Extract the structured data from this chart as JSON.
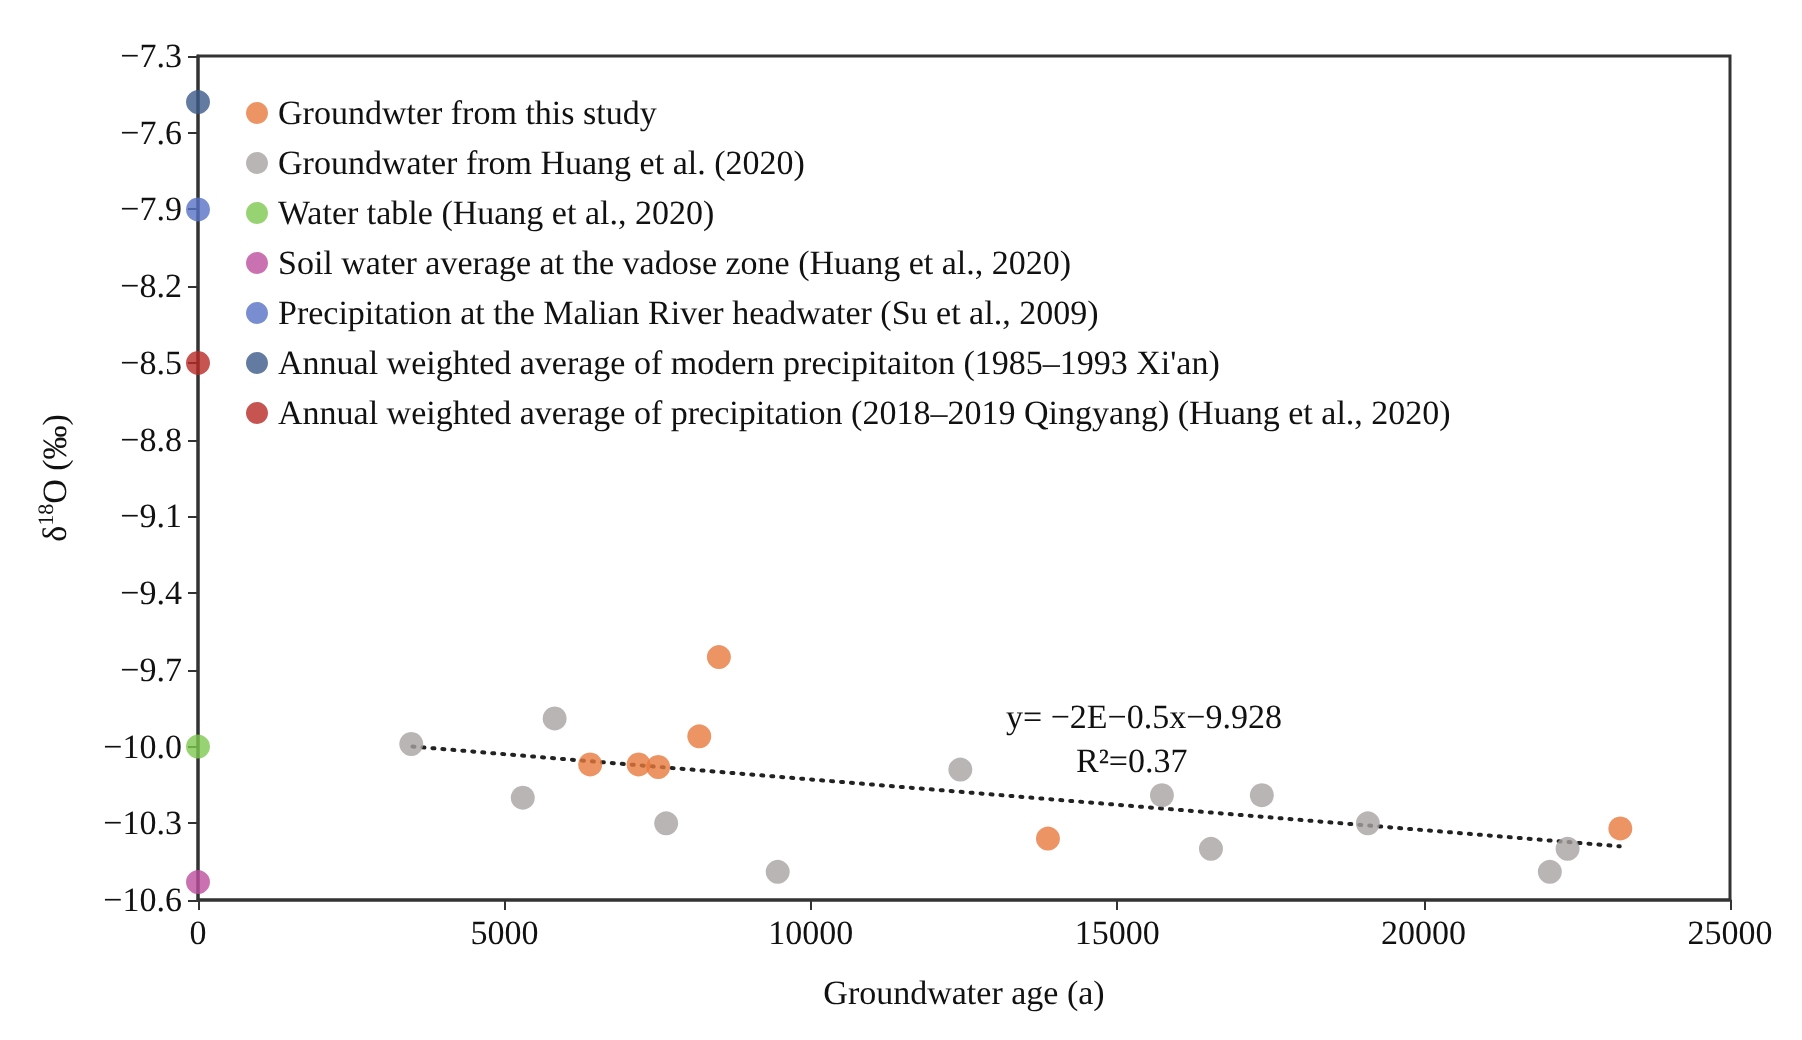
{
  "chart_data": {
    "type": "scatter",
    "xlabel": "Groundwater age (a)",
    "ylabel": "δ$^{18}$O (‰)",
    "xlim": [
      0,
      25000
    ],
    "xticks": [
      0,
      5000,
      10000,
      15000,
      20000,
      25000
    ],
    "ylim": [
      -10.6,
      -7.3
    ],
    "yticks": [
      -10.6,
      -10.3,
      {
        "value": -10.0,
        "label": "−10.0"
      },
      -9.7,
      -9.4,
      -9.1,
      -8.8,
      -8.5,
      -8.2,
      -7.9,
      -7.6,
      -7.3
    ],
    "grid": false,
    "legend": "top left",
    "marker": "circle",
    "annotations": [
      "y= −2E−0.5x−9.928",
      "R²=0.37"
    ],
    "series": [
      {
        "name": "Groundwter from this study",
        "color": "#e8793e",
        "x": [
          6400,
          7190,
          7510,
          8180,
          8500,
          13870,
          23210
        ],
        "values": [
          -10.07,
          -10.07,
          -10.08,
          -9.96,
          -9.65,
          -10.36,
          -10.32
        ]
      },
      {
        "name": "Groundwater from Huang et al. (2020)",
        "color": "#a9a2a2",
        "x": [
          3480,
          5300,
          5820,
          7640,
          9460,
          12440,
          15730,
          16530,
          17360,
          19090,
          22060,
          22350
        ],
        "values": [
          -9.99,
          -10.2,
          -9.89,
          -10.3,
          -10.49,
          -10.09,
          -10.19,
          -10.4,
          -10.19,
          -10.3,
          -10.49,
          -10.4
        ]
      },
      {
        "name": "Water table (Huang et al., 2020)",
        "color": "#7ec850",
        "x": [
          0
        ],
        "values": [
          -10.0
        ]
      },
      {
        "name": "Soil water average at the vadose zone (Huang et al., 2020)",
        "color": "#bd4f9e",
        "x": [
          0
        ],
        "values": [
          -10.53
        ]
      },
      {
        "name": "Precipitation at the Malian River headwater (Su et al., 2009)",
        "color": "#5872c4",
        "x": [
          0
        ],
        "values": [
          -7.9
        ]
      },
      {
        "name": "Annual weighted average of modern precipitaiton (1985–1993 Xi'an)",
        "color": "#3c5a8a",
        "x": [
          0
        ],
        "values": [
          -7.48
        ]
      },
      {
        "name": "Annual weighted average of precipitation (2018–2019 Qingyang) (Huang et al., 2020)",
        "color": "#b82a26",
        "x": [
          0
        ],
        "values": [
          -8.5
        ]
      },
      {
        "type": "line",
        "color": "#222222",
        "line_style": "dotted",
        "marker": "none",
        "x": [
          3500,
          23200
        ],
        "values": [
          -10.0,
          -10.39
        ]
      }
    ]
  }
}
